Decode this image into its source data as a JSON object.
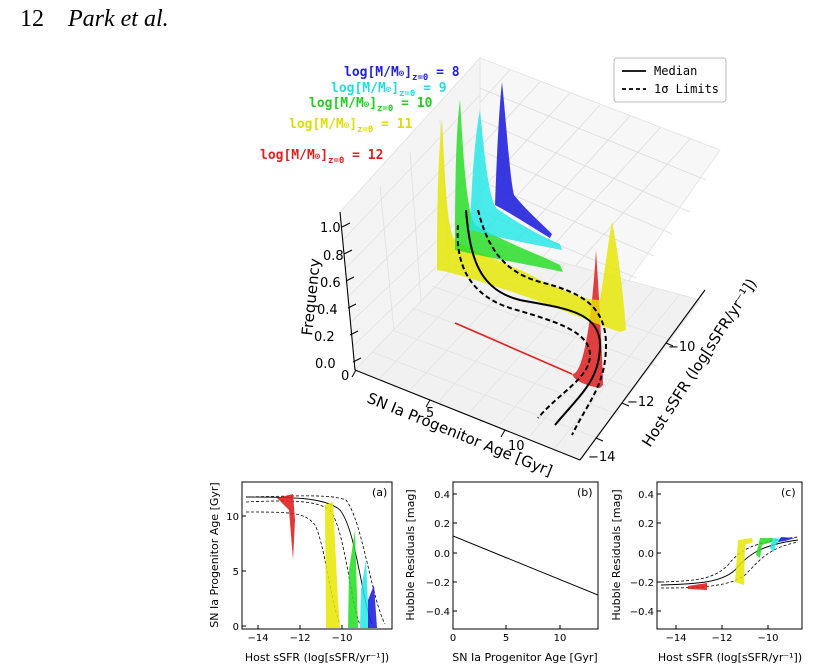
{
  "header": {
    "page_number": "12",
    "authors": "Park et al."
  },
  "colors": {
    "m8": "#2222dd",
    "m9": "#22e6e6",
    "m10": "#22dd22",
    "m11": "#e6e600",
    "m12": "#e02020"
  },
  "main_plot": {
    "mass_labels": [
      {
        "text": "log[M/M",
        "sub": "z=0",
        "value": "= 8",
        "color": "#2222dd"
      },
      {
        "text": "log[M/M",
        "sub": "z=0",
        "value": "= 9",
        "color": "#22dddd"
      },
      {
        "text": "log[M/M",
        "sub": "z=0",
        "value": "= 10",
        "color": "#22cc22"
      },
      {
        "text": "log[M/M",
        "sub": "z=0",
        "value": "= 11",
        "color": "#dddd00"
      },
      {
        "text": "log[M/M",
        "sub": "z=0",
        "value": "= 12",
        "color": "#e02020"
      }
    ],
    "legend": {
      "median": "Median",
      "limits": "1σ Limits"
    },
    "z_label": "Frequency",
    "z_ticks": [
      "0.0",
      "0.2",
      "0.4",
      "0.6",
      "0.8",
      "1.0"
    ],
    "x_label": "SN Ia Progenitor Age [Gyr]",
    "x_ticks": [
      "0",
      "5",
      "10"
    ],
    "y_label": "Host sSFR (log[sSFR/yr⁻¹])",
    "y_ticks": [
      "−10",
      "−12",
      "−14"
    ]
  },
  "panel_a": {
    "tag": "(a)",
    "xlabel": "Host sSFR (log[sSFR/yr⁻¹])",
    "ylabel": "SN Ia Progenitor Age [Gyr]",
    "xticks": [
      "−14",
      "−12",
      "−10"
    ],
    "yticks": [
      "0",
      "5",
      "10"
    ]
  },
  "panel_b": {
    "tag": "(b)",
    "xlabel": "SN Ia Progenitor Age [Gyr]",
    "ylabel": "Hubble Residuals [mag]",
    "xticks": [
      "0",
      "5",
      "10"
    ],
    "yticks": [
      "0.4",
      "0.2",
      "0.0",
      "−0.2",
      "−0.4"
    ]
  },
  "panel_c": {
    "tag": "(c)",
    "xlabel": "Host sSFR (log[sSFR/yr⁻¹])",
    "ylabel": "Hubble Residuals [mag]",
    "xticks": [
      "−14",
      "−12",
      "−10"
    ],
    "yticks": [
      "0.4",
      "0.2",
      "0.0",
      "−0.2",
      "−0.4"
    ]
  }
}
